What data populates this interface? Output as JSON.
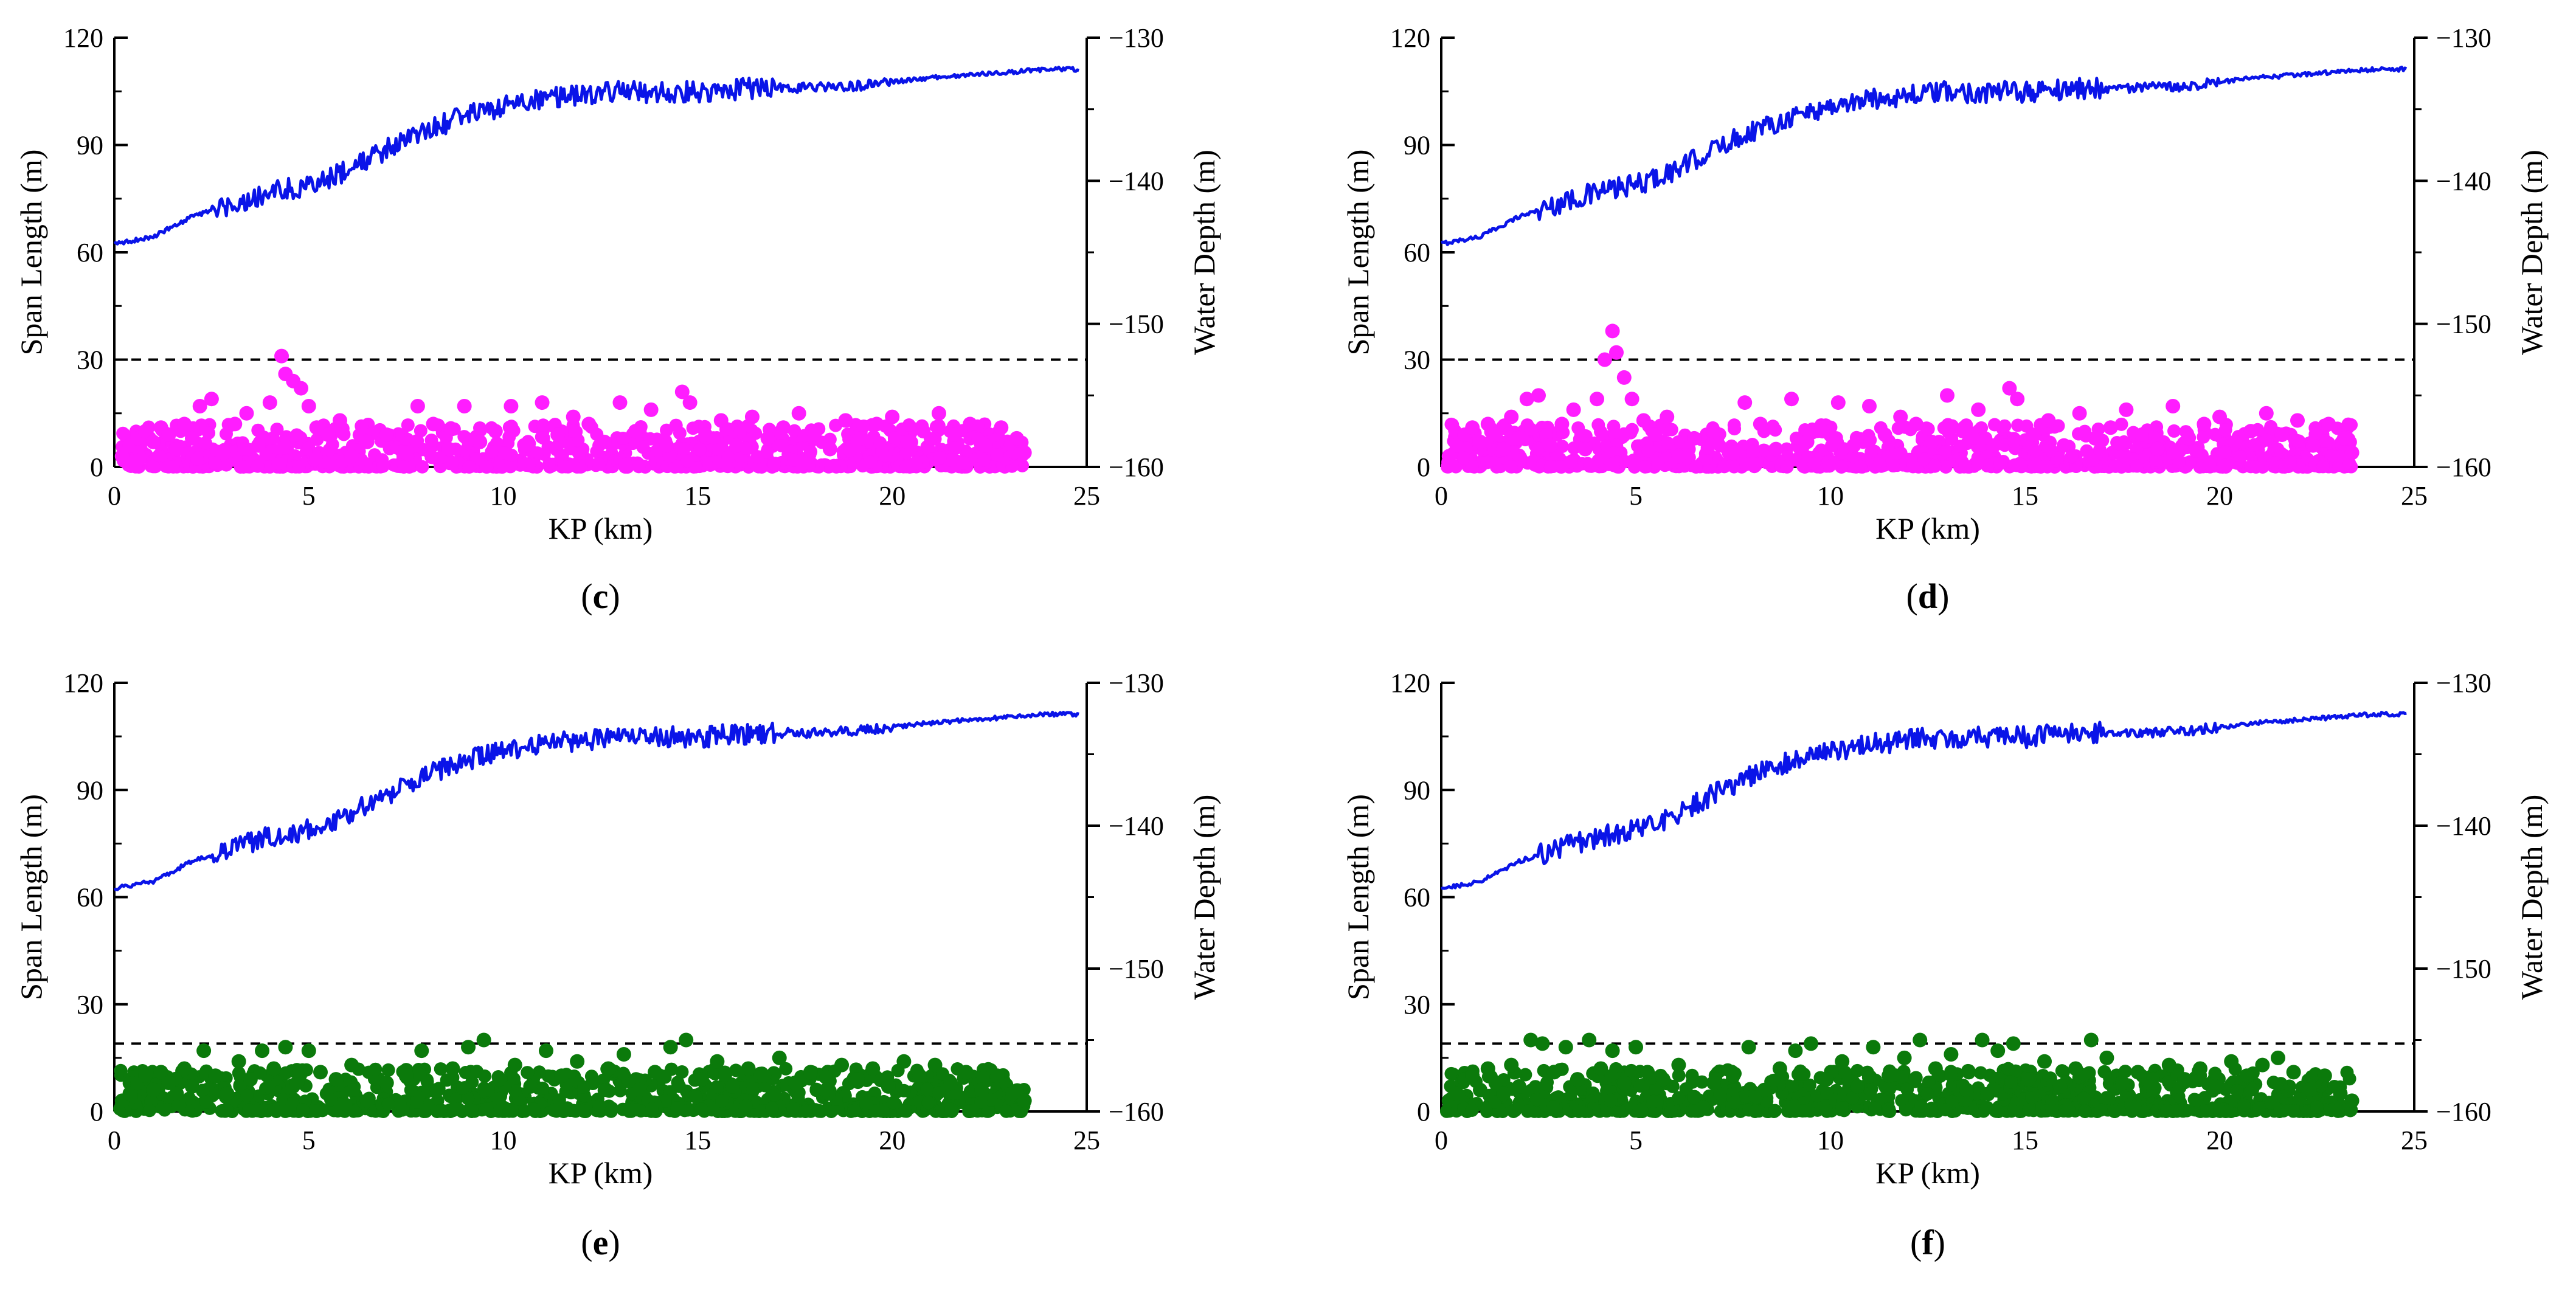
{
  "figure": {
    "colors": {
      "depth_line": "#0a14e8",
      "threshold_line": "#000000",
      "axis": "#000000"
    },
    "panels": [
      {
        "id": "c",
        "label": "c",
        "marker_color": "#ff1dff"
      },
      {
        "id": "d",
        "label": "d",
        "marker_color": "#ff1dff"
      },
      {
        "id": "e",
        "label": "e",
        "marker_color": "#0b7a0b"
      },
      {
        "id": "f",
        "label": "f",
        "marker_color": "#0b7a0b"
      }
    ]
  },
  "chart_data": [
    {
      "panel": "c",
      "type": "scatter",
      "title": "",
      "xlabel": "KP (km)",
      "ylabel_left": "Span Length (m)",
      "ylabel_right": "Water Depth (m)",
      "xlim": [
        0,
        25
      ],
      "ylim_left": [
        0,
        120
      ],
      "ylim_right": [
        -160,
        -130
      ],
      "xticks": [
        0,
        5,
        10,
        15,
        20,
        25
      ],
      "yticks_left": [
        0,
        30,
        60,
        90,
        120
      ],
      "yticks_right": [
        -160,
        -150,
        -140,
        -130
      ],
      "tick_labels_x": [
        "0",
        "5",
        "10",
        "15",
        "20",
        "25"
      ],
      "tick_labels_left": [
        "0",
        "30",
        "60",
        "90",
        "120"
      ],
      "tick_labels_right": [
        "−160",
        "−150",
        "−140",
        "−130"
      ],
      "threshold_span": 30,
      "series": [
        {
          "name": "Water depth",
          "type": "line",
          "axis": "right",
          "x": [
            0,
            1,
            2,
            3,
            4,
            5,
            6,
            7,
            8,
            9,
            10,
            11,
            12,
            13,
            14,
            15,
            16,
            17,
            18,
            19,
            20,
            21,
            22,
            23,
            24,
            24.8
          ],
          "y": [
            -144.4,
            -143.9,
            -142.5,
            -141.6,
            -140.8,
            -140.3,
            -139.3,
            -137.8,
            -136.5,
            -135.5,
            -134.8,
            -134.3,
            -134.0,
            -133.8,
            -133.8,
            -133.8,
            -133.6,
            -133.5,
            -133.5,
            -133.4,
            -133.1,
            -132.8,
            -132.6,
            -132.4,
            -132.2,
            -132.2
          ]
        },
        {
          "name": "Span length",
          "type": "scatter",
          "axis": "left",
          "x": [
            0.2,
            0.4,
            0.6,
            0.8,
            1.0,
            1.2,
            1.4,
            1.6,
            1.8,
            2.0,
            2.2,
            2.5,
            2.8,
            3.1,
            3.4,
            3.7,
            4.0,
            4.3,
            4.4,
            4.6,
            4.8,
            5.0,
            5.2,
            5.5,
            5.8,
            6.1,
            6.5,
            7.0,
            7.5,
            7.8,
            8.2,
            8.6,
            9.0,
            9.4,
            9.8,
            10.2,
            10.6,
            11.0,
            11.4,
            11.8,
            12.2,
            12.6,
            13.0,
            13.4,
            13.8,
            14.2,
            14.6,
            14.8,
            15.2,
            15.6,
            16.0,
            16.4,
            16.8,
            17.2,
            17.6,
            18.0,
            18.4,
            18.8,
            19.2,
            19.6,
            20.0,
            20.4,
            20.8,
            21.2,
            21.6,
            22.0,
            22.4,
            22.8,
            23.2,
            23.4
          ],
          "y": [
            3,
            6,
            8,
            10,
            7,
            11,
            9,
            5,
            12,
            8,
            17,
            19,
            4,
            12,
            15,
            6,
            18,
            31,
            26,
            24,
            22,
            17,
            11,
            9,
            13,
            3,
            7,
            9,
            4,
            17,
            12,
            5,
            17,
            7,
            10,
            17,
            6,
            18,
            9,
            14,
            12,
            7,
            18,
            10,
            16,
            6,
            21,
            18,
            9,
            13,
            6,
            14,
            8,
            11,
            15,
            9,
            5,
            13,
            8,
            12,
            14,
            7,
            10,
            15,
            9,
            12,
            6,
            11,
            8,
            4
          ]
        }
      ]
    },
    {
      "panel": "d",
      "type": "scatter",
      "title": "",
      "xlabel": "KP (km)",
      "ylabel_left": "Span Length (m)",
      "ylabel_right": "Water Depth (m)",
      "xlim": [
        0,
        25
      ],
      "ylim_left": [
        0,
        120
      ],
      "ylim_right": [
        -160,
        -130
      ],
      "xticks": [
        0,
        5,
        10,
        15,
        20,
        25
      ],
      "yticks_left": [
        0,
        30,
        60,
        90,
        120
      ],
      "yticks_right": [
        -160,
        -150,
        -140,
        -130
      ],
      "tick_labels_x": [
        "0",
        "5",
        "10",
        "15",
        "20",
        "25"
      ],
      "tick_labels_left": [
        "0",
        "30",
        "60",
        "90",
        "120"
      ],
      "tick_labels_right": [
        "−160",
        "−150",
        "−140",
        "−130"
      ],
      "threshold_span": 30,
      "series": [
        {
          "name": "Water depth",
          "type": "line",
          "axis": "right",
          "x": [
            0,
            1,
            2,
            3,
            4,
            5,
            6,
            7,
            8,
            9,
            10,
            11,
            12,
            13,
            14,
            15,
            16,
            17,
            18,
            19,
            20,
            21,
            22,
            23,
            24,
            24.8
          ],
          "y": [
            -144.4,
            -143.9,
            -142.5,
            -141.6,
            -140.8,
            -140.3,
            -139.3,
            -137.8,
            -136.5,
            -135.5,
            -134.8,
            -134.3,
            -134.0,
            -133.8,
            -133.8,
            -133.8,
            -133.6,
            -133.5,
            -133.5,
            -133.4,
            -133.1,
            -132.8,
            -132.6,
            -132.4,
            -132.2,
            -132.2
          ]
        },
        {
          "name": "Span length",
          "type": "scatter",
          "axis": "left",
          "x": [
            0.2,
            0.4,
            0.6,
            0.8,
            1.0,
            1.2,
            1.4,
            1.6,
            1.8,
            2.0,
            2.2,
            2.5,
            2.8,
            3.1,
            3.4,
            3.7,
            4.0,
            4.2,
            4.4,
            4.5,
            4.7,
            4.9,
            5.2,
            5.5,
            5.8,
            6.1,
            6.5,
            7.0,
            7.5,
            7.8,
            8.2,
            8.6,
            9.0,
            9.4,
            9.8,
            10.2,
            10.6,
            11.0,
            11.4,
            11.8,
            12.2,
            12.6,
            13.0,
            13.4,
            13.8,
            14.2,
            14.6,
            14.8,
            15.2,
            15.6,
            16.0,
            16.4,
            16.8,
            17.2,
            17.6,
            18.0,
            18.4,
            18.8,
            19.2,
            19.6,
            20.0,
            20.4,
            20.8,
            21.2,
            21.6,
            22.0,
            22.4,
            22.8,
            23.2,
            23.4
          ],
          "y": [
            3,
            6,
            9,
            11,
            7,
            12,
            9,
            5,
            14,
            8,
            19,
            20,
            6,
            12,
            16,
            5,
            19,
            30,
            38,
            32,
            25,
            19,
            13,
            9,
            14,
            3,
            8,
            10,
            4,
            18,
            12,
            5,
            19,
            7,
            10,
            18,
            6,
            17,
            9,
            14,
            12,
            7,
            20,
            10,
            16,
            6,
            22,
            19,
            9,
            13,
            6,
            15,
            8,
            11,
            16,
            9,
            5,
            17,
            8,
            12,
            14,
            7,
            10,
            15,
            9,
            13,
            6,
            12,
            8,
            4
          ]
        }
      ]
    },
    {
      "panel": "e",
      "type": "scatter",
      "title": "",
      "xlabel": "KP (km)",
      "ylabel_left": "Span Length (m)",
      "ylabel_right": "Water Depth (m)",
      "xlim": [
        0,
        25
      ],
      "ylim_left": [
        0,
        120
      ],
      "ylim_right": [
        -160,
        -130
      ],
      "xticks": [
        0,
        5,
        10,
        15,
        20,
        25
      ],
      "yticks_left": [
        0,
        30,
        60,
        90,
        120
      ],
      "yticks_right": [
        -160,
        -150,
        -140,
        -130
      ],
      "tick_labels_x": [
        "0",
        "5",
        "10",
        "15",
        "20",
        "25"
      ],
      "tick_labels_left": [
        "0",
        "30",
        "60",
        "90",
        "120"
      ],
      "tick_labels_right": [
        "−160",
        "−150",
        "−140",
        "−130"
      ],
      "threshold_span": 19,
      "series": [
        {
          "name": "Water depth",
          "type": "line",
          "axis": "right",
          "x": [
            0,
            1,
            2,
            3,
            4,
            5,
            6,
            7,
            8,
            9,
            10,
            11,
            12,
            13,
            14,
            15,
            16,
            17,
            18,
            19,
            20,
            21,
            22,
            23,
            24,
            24.8
          ],
          "y": [
            -144.4,
            -143.9,
            -142.5,
            -141.6,
            -140.8,
            -140.3,
            -139.3,
            -137.8,
            -136.5,
            -135.5,
            -134.8,
            -134.3,
            -134.0,
            -133.8,
            -133.8,
            -133.8,
            -133.6,
            -133.5,
            -133.5,
            -133.4,
            -133.1,
            -132.8,
            -132.6,
            -132.4,
            -132.2,
            -132.2
          ]
        },
        {
          "name": "Span length",
          "type": "scatter",
          "axis": "left",
          "x": [
            0.2,
            0.4,
            0.6,
            0.8,
            1.0,
            1.2,
            1.4,
            1.6,
            1.8,
            2.0,
            2.3,
            2.6,
            2.9,
            3.2,
            3.5,
            3.8,
            4.1,
            4.4,
            4.7,
            5.0,
            5.3,
            5.7,
            6.1,
            6.5,
            7.0,
            7.5,
            7.9,
            8.3,
            8.7,
            9.1,
            9.5,
            9.9,
            10.3,
            10.7,
            11.1,
            11.5,
            11.9,
            12.3,
            12.7,
            13.1,
            13.5,
            13.9,
            14.3,
            14.7,
            15.1,
            15.5,
            15.9,
            16.3,
            16.7,
            17.1,
            17.5,
            17.9,
            18.3,
            18.7,
            19.1,
            19.5,
            19.9,
            20.3,
            20.7,
            21.1,
            21.5,
            21.9,
            22.3,
            22.7,
            23.1,
            23.4
          ],
          "y": [
            3,
            5,
            8,
            10,
            6,
            11,
            8,
            5,
            12,
            7,
            17,
            10,
            5,
            14,
            9,
            17,
            12,
            18,
            8,
            17,
            11,
            9,
            13,
            3,
            8,
            10,
            17,
            6,
            12,
            18,
            20,
            9,
            13,
            7,
            17,
            10,
            14,
            8,
            12,
            16,
            6,
            11,
            18,
            20,
            9,
            14,
            7,
            12,
            10,
            15,
            8,
            11,
            6,
            13,
            9,
            12,
            7,
            14,
            10,
            13,
            8,
            11,
            6,
            10,
            5,
            3
          ]
        }
      ]
    },
    {
      "panel": "f",
      "type": "scatter",
      "title": "",
      "xlabel": "KP (km)",
      "ylabel_left": "Span Length (m)",
      "ylabel_right": "Water Depth (m)",
      "xlim": [
        0,
        25
      ],
      "ylim_left": [
        0,
        120
      ],
      "ylim_right": [
        -160,
        -130
      ],
      "xticks": [
        0,
        5,
        10,
        15,
        20,
        25
      ],
      "yticks_left": [
        0,
        30,
        60,
        90,
        120
      ],
      "yticks_right": [
        -160,
        -150,
        -140,
        -130
      ],
      "tick_labels_x": [
        "0",
        "5",
        "10",
        "15",
        "20",
        "25"
      ],
      "tick_labels_left": [
        "0",
        "30",
        "60",
        "90",
        "120"
      ],
      "tick_labels_right": [
        "−160",
        "−150",
        "−140",
        "−130"
      ],
      "threshold_span": 19,
      "series": [
        {
          "name": "Water depth",
          "type": "line",
          "axis": "right",
          "x": [
            0,
            1,
            2,
            3,
            4,
            5,
            6,
            7,
            8,
            9,
            10,
            11,
            12,
            13,
            14,
            15,
            16,
            17,
            18,
            19,
            20,
            21,
            22,
            23,
            24,
            24.8
          ],
          "y": [
            -144.4,
            -143.9,
            -142.5,
            -141.6,
            -140.8,
            -140.3,
            -139.3,
            -137.8,
            -136.5,
            -135.5,
            -134.8,
            -134.3,
            -134.0,
            -133.8,
            -133.8,
            -133.8,
            -133.6,
            -133.5,
            -133.5,
            -133.4,
            -133.1,
            -132.8,
            -132.6,
            -132.4,
            -132.2,
            -132.2
          ]
        },
        {
          "name": "Span length",
          "type": "scatter",
          "axis": "left",
          "x": [
            0.2,
            0.4,
            0.6,
            0.8,
            1.0,
            1.2,
            1.4,
            1.6,
            1.8,
            2.0,
            2.3,
            2.6,
            2.9,
            3.2,
            3.5,
            3.8,
            4.1,
            4.4,
            4.7,
            5.0,
            5.3,
            5.7,
            6.1,
            6.5,
            7.0,
            7.5,
            7.9,
            8.3,
            8.7,
            9.1,
            9.5,
            9.9,
            10.3,
            10.7,
            11.1,
            11.5,
            11.9,
            12.3,
            12.7,
            13.1,
            13.5,
            13.9,
            14.3,
            14.7,
            15.1,
            15.5,
            15.9,
            16.3,
            16.7,
            17.1,
            17.5,
            17.9,
            18.3,
            18.7,
            19.1,
            19.5,
            19.9,
            20.3,
            20.7,
            21.1,
            21.5,
            21.9,
            22.3,
            22.7,
            23.1,
            23.4
          ],
          "y": [
            3,
            5,
            9,
            10,
            6,
            12,
            8,
            5,
            13,
            7,
            20,
            19,
            11,
            18,
            9,
            20,
            12,
            17,
            8,
            18,
            11,
            9,
            13,
            4,
            8,
            10,
            18,
            6,
            12,
            17,
            19,
            9,
            14,
            7,
            18,
            10,
            15,
            20,
            12,
            16,
            6,
            20,
            17,
            19,
            9,
            14,
            7,
            12,
            20,
            15,
            8,
            11,
            6,
            13,
            9,
            12,
            7,
            14,
            10,
            13,
            15,
            11,
            6,
            10,
            5,
            3
          ]
        }
      ]
    }
  ]
}
